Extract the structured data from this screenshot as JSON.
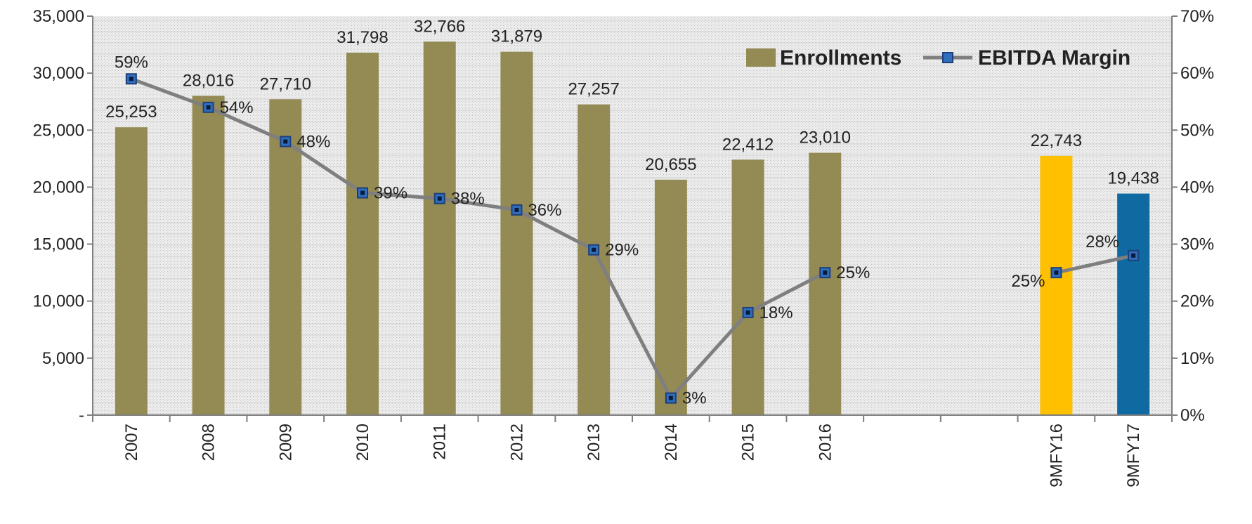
{
  "chart_data": {
    "type": "bar",
    "categories": [
      "2007",
      "2008",
      "2009",
      "2010",
      "2011",
      "2012",
      "2013",
      "2014",
      "2015",
      "2016",
      "",
      "",
      "9MFY16",
      "9MFY17"
    ],
    "series": [
      {
        "name": "Enrollments",
        "type": "bar",
        "axis": "left",
        "values": [
          25253,
          28016,
          27710,
          31798,
          32766,
          31879,
          27257,
          20655,
          22412,
          23010,
          null,
          null,
          22743,
          19438
        ],
        "labels": [
          "25,253",
          "28,016",
          "27,710",
          "31,798",
          "32,766",
          "31,879",
          "27,257",
          "20,655",
          "22,412",
          "23,010",
          "",
          "",
          "22,743",
          "19,438"
        ],
        "colors": [
          "#948a54",
          "#948a54",
          "#948a54",
          "#948a54",
          "#948a54",
          "#948a54",
          "#948a54",
          "#948a54",
          "#948a54",
          "#948a54",
          "#948a54",
          "#948a54",
          "#ffc000",
          "#0e6aa0"
        ]
      },
      {
        "name": "EBITDA Margin",
        "type": "line",
        "axis": "right",
        "values": [
          59,
          54,
          48,
          39,
          38,
          36,
          29,
          3,
          18,
          25,
          null,
          null,
          25,
          28
        ],
        "labels": [
          "59%",
          "54%",
          "48%",
          "39%",
          "38%",
          "36%",
          "29%",
          "3%",
          "18%",
          "25%",
          "",
          "",
          "25%",
          "28%"
        ],
        "color": "#7f7f7f",
        "marker_color": "#2e6fc0"
      }
    ],
    "left_axis": {
      "min": 0,
      "max": 35000,
      "ticks": [
        "-",
        "5,000",
        "10,000",
        "15,000",
        "20,000",
        "25,000",
        "30,000",
        "35,000"
      ]
    },
    "right_axis": {
      "min": 0,
      "max": 70,
      "ticks": [
        "0%",
        "10%",
        "20%",
        "30%",
        "40%",
        "50%",
        "60%",
        "70%"
      ]
    },
    "legend_position": "top-right",
    "plot_background": "#e6e6e6",
    "grid": true
  }
}
